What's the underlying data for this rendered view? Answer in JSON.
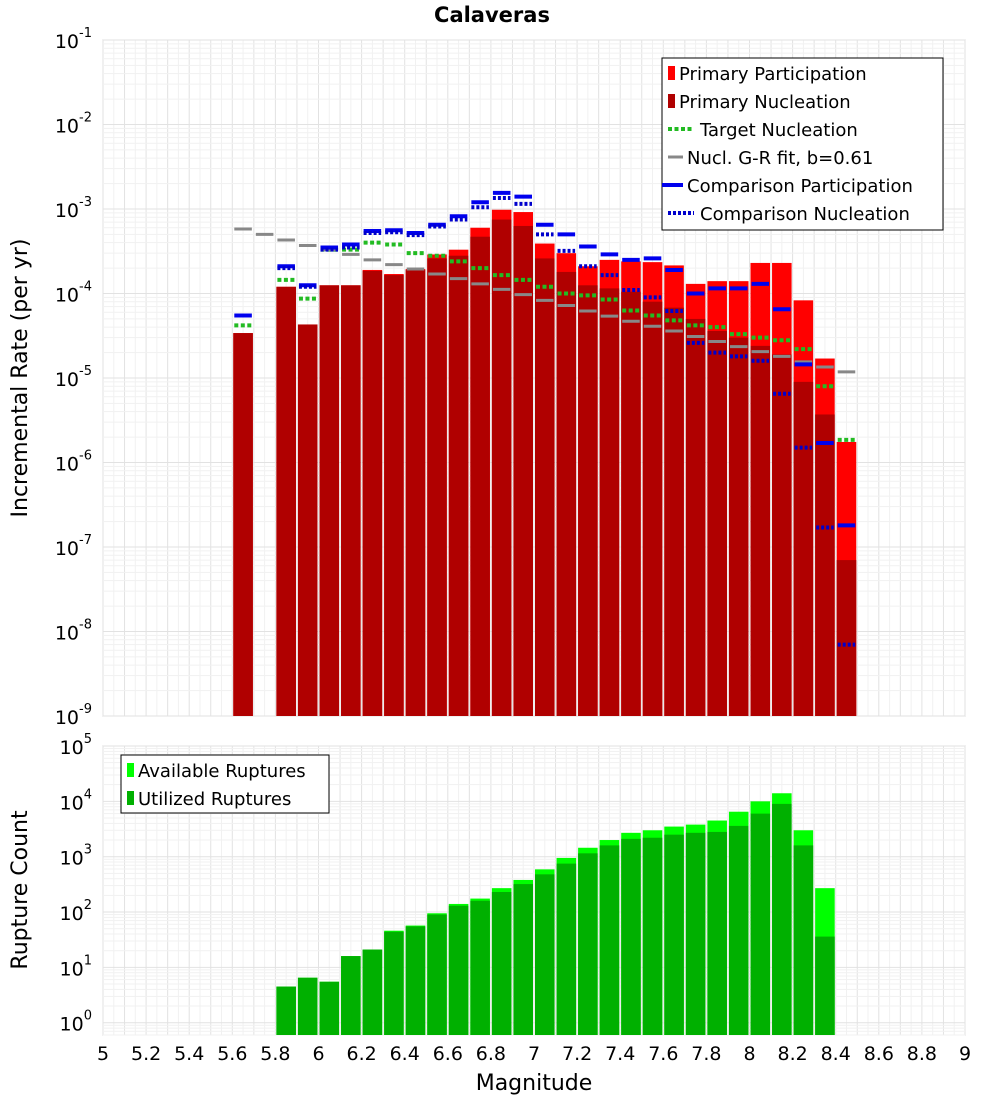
{
  "chart_data": [
    {
      "type": "bar",
      "title": "Calaveras",
      "ylabel": "Incremental Rate (per yr)",
      "xlabel": "",
      "yscale": "log",
      "ylim": [
        1e-09,
        0.1
      ],
      "xlim": [
        5,
        9
      ],
      "y_tick_labels": [
        {
          "base": "10",
          "exp": "-9"
        },
        {
          "base": "10",
          "exp": "-8"
        },
        {
          "base": "10",
          "exp": "-7"
        },
        {
          "base": "10",
          "exp": "-6"
        },
        {
          "base": "10",
          "exp": "-5"
        },
        {
          "base": "10",
          "exp": "-4"
        },
        {
          "base": "10",
          "exp": "-3"
        },
        {
          "base": "10",
          "exp": "-2"
        },
        {
          "base": "10",
          "exp": "-1"
        }
      ],
      "legend_position": "top-right",
      "colors": {
        "primary_participation": "#ff0000",
        "primary_nucleation": "#b00000",
        "target_nucleation": "#22bb22",
        "gr_fit": "#888888",
        "comparison_participation": "#0000ee",
        "comparison_nucleation": "#0000cc"
      },
      "x": [
        5.65,
        5.75,
        5.85,
        5.95,
        6.05,
        6.15,
        6.25,
        6.35,
        6.45,
        6.55,
        6.65,
        6.75,
        6.85,
        6.95,
        7.05,
        7.15,
        7.25,
        7.35,
        7.45,
        7.55,
        7.65,
        7.75,
        7.85,
        7.95,
        8.05,
        8.15,
        8.25,
        8.35,
        8.45
      ],
      "series": [
        {
          "name": "Primary Participation",
          "style": "bar",
          "values": [
            3.4e-05,
            null,
            0.00012,
            4.3e-05,
            0.000125,
            0.000125,
            0.00019,
            0.00017,
            0.000195,
            0.00029,
            0.00033,
            0.0006,
            0.00098,
            0.00092,
            0.00039,
            0.0003,
            0.00021,
            0.00025,
            0.00024,
            0.000235,
            0.000215,
            0.00013,
            0.00014,
            0.00014,
            0.00023,
            0.00023,
            8.3e-05,
            1.7e-05,
            1.75e-06
          ]
        },
        {
          "name": "Primary Nucleation",
          "style": "bar",
          "values": [
            3.4e-05,
            null,
            0.00012,
            4.3e-05,
            0.000125,
            0.000125,
            0.000185,
            0.000165,
            0.00019,
            0.00026,
            0.00028,
            0.00047,
            0.00075,
            0.00063,
            0.00026,
            0.00018,
            0.000125,
            0.000115,
            0.000105,
            8e-05,
            6.8e-05,
            5e-05,
            3.6e-05,
            3e-05,
            2.4e-05,
            1.9e-05,
            9e-06,
            3.7e-06,
            7e-08
          ]
        },
        {
          "name": "Target Nucleation",
          "style": "dash",
          "values": [
            4.2e-05,
            null,
            0.000145,
            8.7e-05,
            0.00033,
            0.00033,
            0.0004,
            0.00038,
            0.0003,
            0.00028,
            0.00024,
            0.0002,
            0.000165,
            0.000145,
            0.00012,
            0.0001,
            9.5e-05,
            8.5e-05,
            6.3e-05,
            5.5e-05,
            4.8e-05,
            4.2e-05,
            4e-05,
            3.3e-05,
            3e-05,
            2.8e-05,
            2.2e-05,
            8e-06,
            1.85e-06
          ]
        },
        {
          "name": "Nucl. G-R fit, b=0.61",
          "style": "solid",
          "values": [
            0.00058,
            0.0005,
            0.00043,
            0.00037,
            0.00033,
            0.00029,
            0.00025,
            0.00022,
            0.000195,
            0.00017,
            0.00015,
            0.00013,
            0.000112,
            9.7e-05,
            8.3e-05,
            7.2e-05,
            6.2e-05,
            5.4e-05,
            4.7e-05,
            4.1e-05,
            3.6e-05,
            3.1e-05,
            2.7e-05,
            2.35e-05,
            2.05e-05,
            1.8e-05,
            1.55e-05,
            1.35e-05,
            1.18e-05
          ]
        },
        {
          "name": "Comparison Participation",
          "style": "solid",
          "values": [
            5.5e-05,
            null,
            0.00021,
            0.000125,
            0.00035,
            0.00038,
            0.00055,
            0.00056,
            0.00052,
            0.00065,
            0.00082,
            0.0012,
            0.00155,
            0.0014,
            0.00065,
            0.0005,
            0.00036,
            0.00029,
            0.00025,
            0.00026,
            0.00019,
            0.0001,
            0.000115,
            0.000115,
            0.00013,
            6.5e-05,
            1.45e-05,
            1.7e-06,
            1.8e-07
          ]
        },
        {
          "name": "Comparison Nucleation",
          "style": "dot",
          "values": [
            null,
            null,
            0.0002,
            0.00012,
            0.00033,
            0.00035,
            0.00052,
            0.00053,
            0.00049,
            0.00062,
            0.00075,
            0.00105,
            0.00135,
            0.00115,
            0.0005,
            0.00032,
            0.00021,
            0.000165,
            0.00011,
            9e-05,
            6.2e-05,
            2.6e-05,
            2e-05,
            1.8e-05,
            1.6e-05,
            6.5e-06,
            1.5e-06,
            1.7e-07,
            7e-09
          ]
        }
      ]
    },
    {
      "type": "bar",
      "title": "",
      "ylabel": "Rupture Count",
      "xlabel": "Magnitude",
      "yscale": "log",
      "ylim": [
        0.6,
        100000
      ],
      "xlim": [
        5,
        9
      ],
      "y_tick_labels": [
        {
          "base": "10",
          "exp": "0"
        },
        {
          "base": "10",
          "exp": "1"
        },
        {
          "base": "10",
          "exp": "2"
        },
        {
          "base": "10",
          "exp": "3"
        },
        {
          "base": "10",
          "exp": "4"
        },
        {
          "base": "10",
          "exp": "5"
        }
      ],
      "x_tick_labels": [
        "5",
        "5.2",
        "5.4",
        "5.6",
        "5.8",
        "6",
        "6.2",
        "6.4",
        "6.6",
        "6.8",
        "7",
        "7.2",
        "7.4",
        "7.6",
        "7.8",
        "8",
        "8.2",
        "8.4",
        "8.6",
        "8.8",
        "9"
      ],
      "legend_position": "top-left",
      "colors": {
        "available": "#00ff00",
        "utilized": "#00b000"
      },
      "x": [
        5.85,
        5.95,
        6.05,
        6.15,
        6.25,
        6.35,
        6.45,
        6.55,
        6.65,
        6.75,
        6.85,
        6.95,
        7.05,
        7.15,
        7.25,
        7.35,
        7.45,
        7.55,
        7.65,
        7.75,
        7.85,
        7.95,
        8.05,
        8.15,
        8.25,
        8.35
      ],
      "series": [
        {
          "name": "Available Ruptures",
          "values": [
            4.5,
            6.5,
            5.5,
            16,
            21,
            46,
            57,
            95,
            140,
            175,
            270,
            380,
            590,
            950,
            1450,
            2000,
            2700,
            3000,
            3500,
            3800,
            4500,
            6500,
            10000,
            14000,
            3000,
            270
          ]
        },
        {
          "name": "Utilized Ruptures",
          "values": [
            4.5,
            6.5,
            5.5,
            16,
            21,
            44,
            55,
            90,
            130,
            160,
            230,
            320,
            480,
            750,
            1150,
            1600,
            2100,
            2200,
            2500,
            2700,
            2800,
            3600,
            6000,
            9000,
            1600,
            36
          ]
        }
      ]
    }
  ]
}
